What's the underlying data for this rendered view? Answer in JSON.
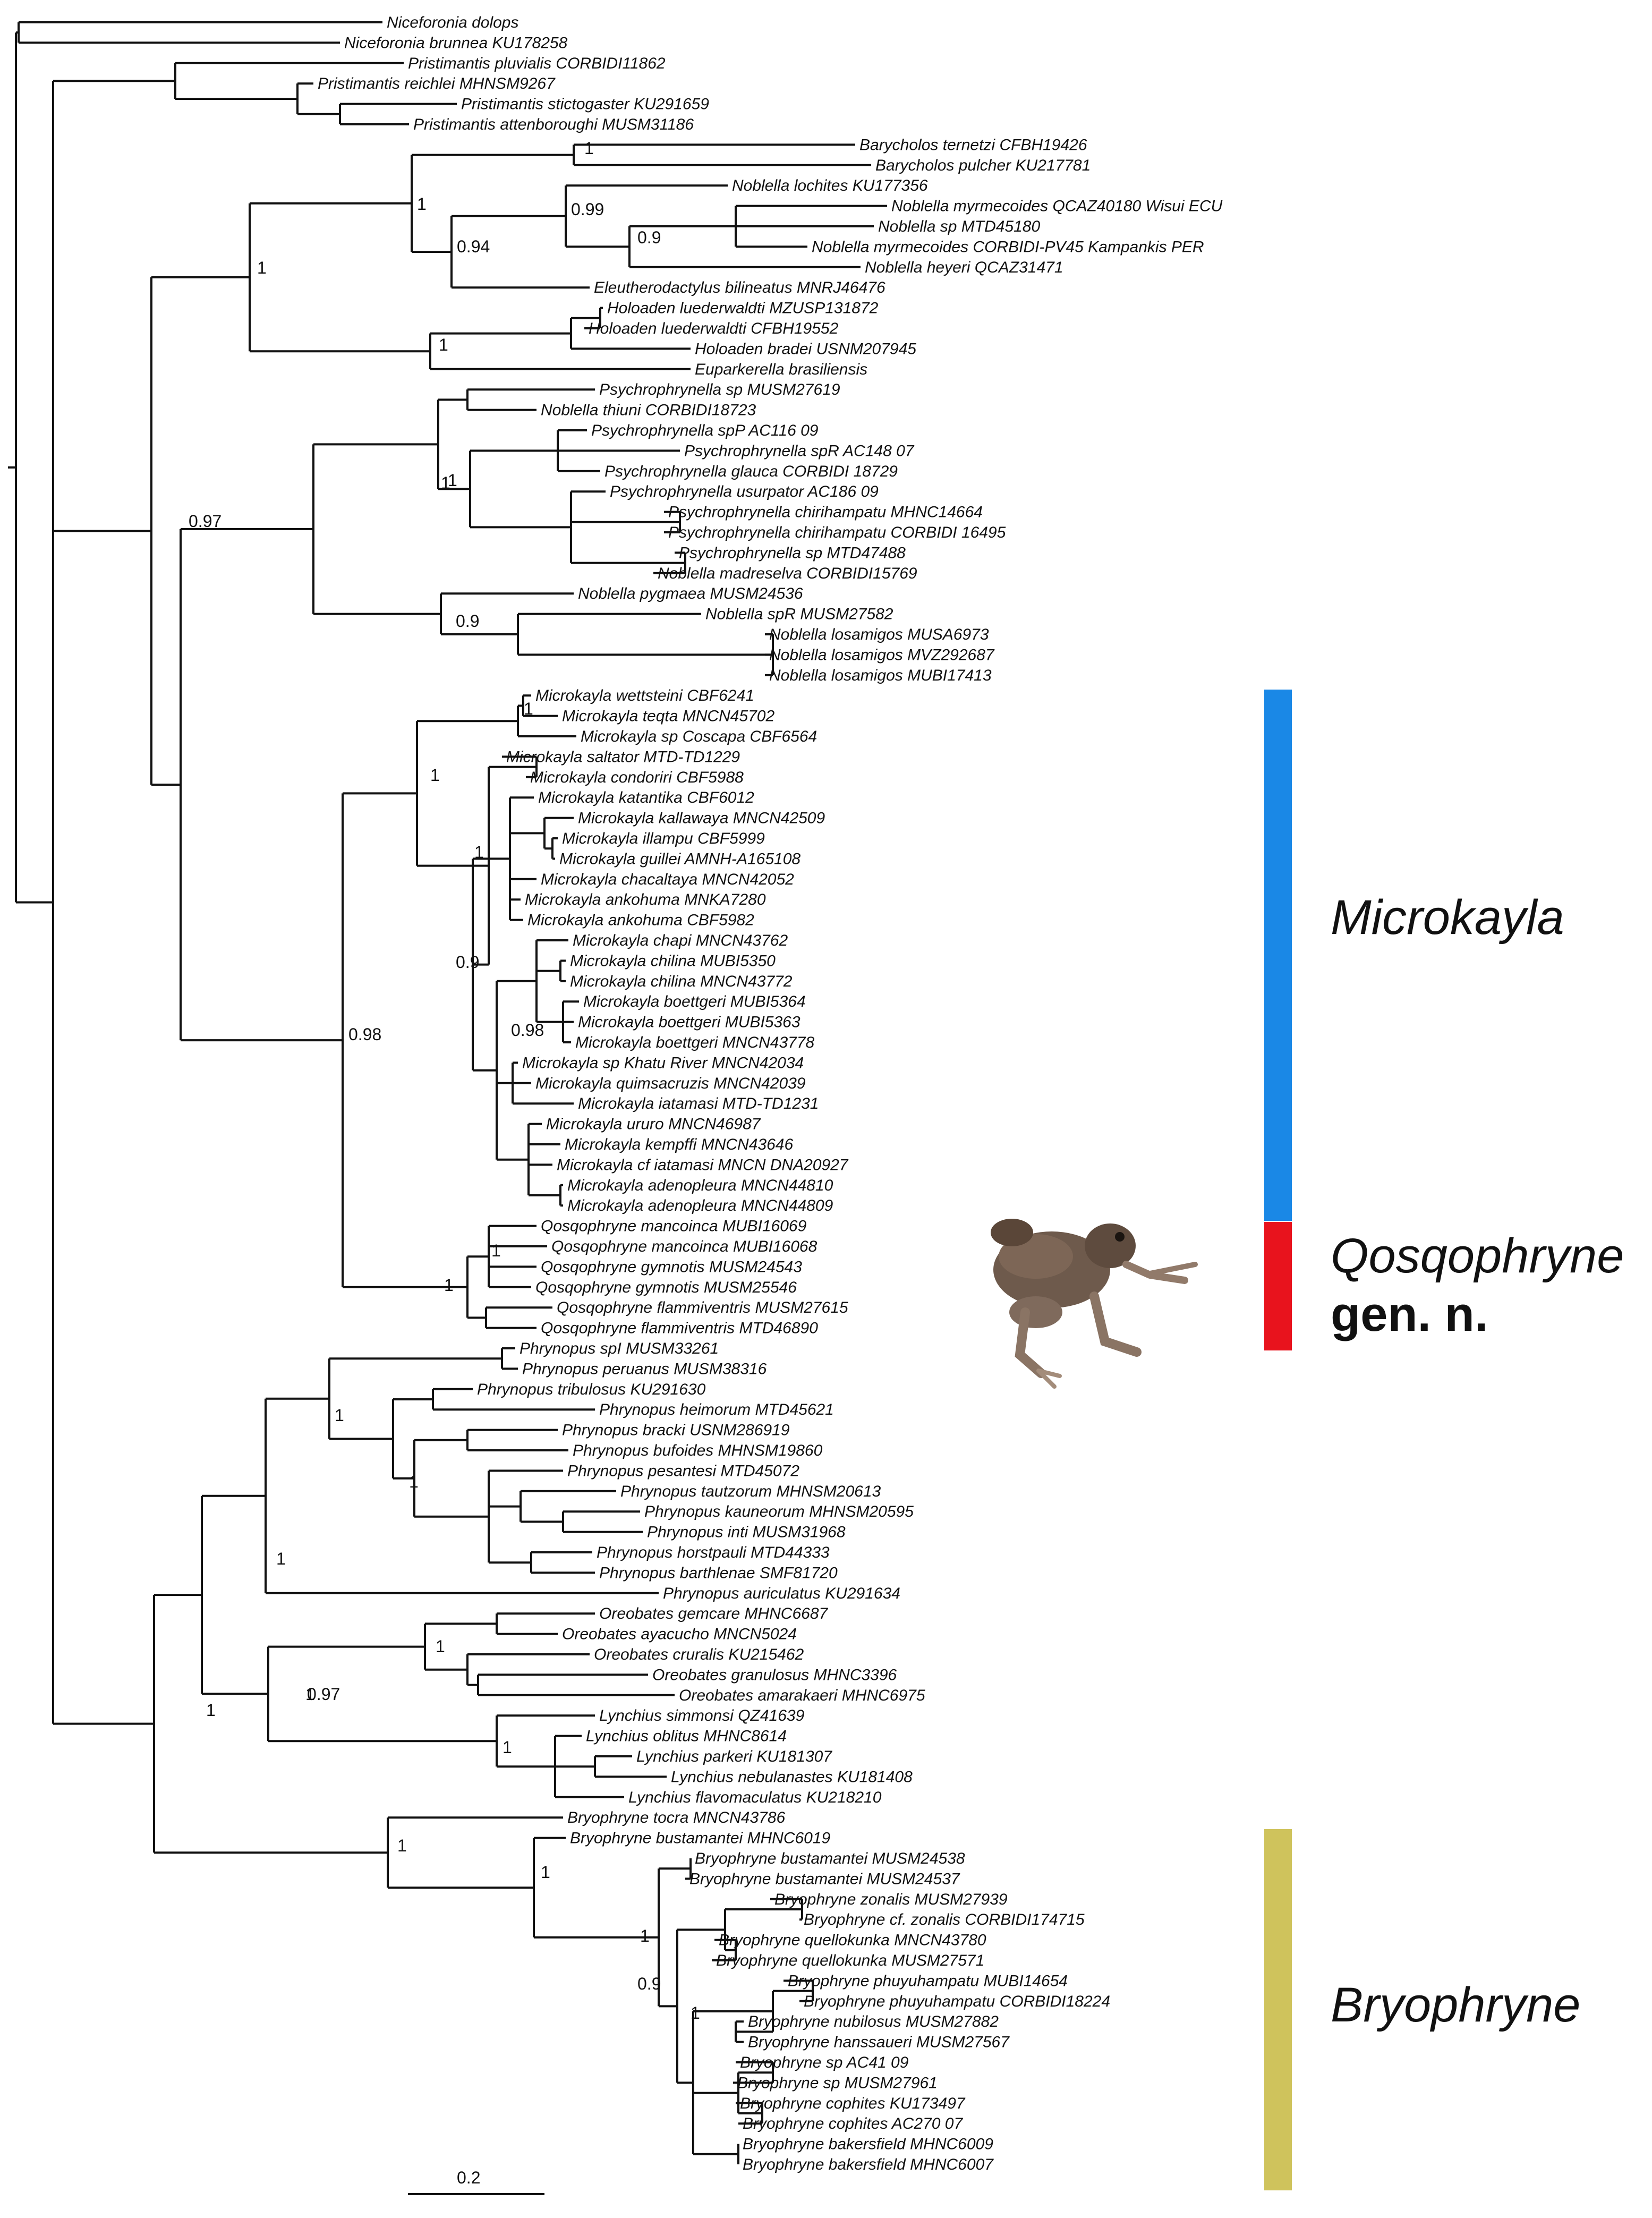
{
  "tips": [
    "Niceforonia dolops",
    "Niceforonia brunnea KU178258",
    "Pristimantis pluvialis CORBIDI11862",
    "Pristimantis reichlei MHNSM9267",
    "Pristimantis stictogaster KU291659",
    "Pristimantis attenboroughi MUSM31186",
    "Barycholos ternetzi CFBH19426",
    "Barycholos pulcher KU217781",
    "Noblella lochites KU177356",
    "Noblella myrmecoides QCAZ40180 Wisui ECU",
    "Noblella sp MTD45180",
    "Noblella myrmecoides CORBIDI-PV45 Kampankis PER",
    "Noblella heyeri QCAZ31471",
    "Eleutherodactylus bilineatus MNRJ46476",
    "Holoaden luederwaldti MZUSP131872",
    "Holoaden luederwaldti CFBH19552",
    "Holoaden bradei USNM207945",
    "Euparkerella brasiliensis",
    "Psychrophrynella sp MUSM27619",
    "Noblella thiuni CORBIDI18723",
    "Psychrophrynella spP AC116 09",
    "Psychrophrynella spR AC148 07",
    "Psychrophrynella glauca CORBIDI 18729",
    "Psychrophrynella usurpator AC186 09",
    "Psychrophrynella chirihampatu MHNC14664",
    "Psychrophrynella chirihampatu CORBIDI 16495",
    "Psychrophrynella sp MTD47488",
    "Noblella madreselva CORBIDI15769",
    "Noblella pygmaea MUSM24536",
    "Noblella spR MUSM27582",
    "Noblella losamigos MUSA6973",
    "Noblella losamigos MVZ292687",
    "Noblella losamigos MUBI17413",
    "Microkayla wettsteini CBF6241",
    "Microkayla teqta MNCN45702",
    "Microkayla sp Coscapa CBF6564",
    "Microkayla saltator MTD-TD1229",
    "Microkayla condoriri CBF5988",
    "Microkayla katantika CBF6012",
    "Microkayla kallawaya MNCN42509",
    "Microkayla illampu CBF5999",
    "Microkayla guillei AMNH-A165108",
    "Microkayla chacaltaya MNCN42052",
    "Microkayla ankohuma MNKA7280",
    "Microkayla ankohuma CBF5982",
    "Microkayla chapi MNCN43762",
    "Microkayla chilina MUBI5350",
    "Microkayla chilina MNCN43772",
    "Microkayla boettgeri MUBI5364",
    "Microkayla boettgeri MUBI5363",
    "Microkayla boettgeri MNCN43778",
    "Microkayla sp Khatu River MNCN42034",
    "Microkayla quimsacruzis MNCN42039",
    "Microkayla iatamasi MTD-TD1231",
    "Microkayla ururo MNCN46987",
    "Microkayla kempffi MNCN43646",
    "Microkayla cf iatamasi MNCN DNA20927",
    "Microkayla adenopleura MNCN44810",
    "Microkayla adenopleura MNCN44809",
    "Qosqophryne mancoinca MUBI16069",
    "Qosqophryne mancoinca MUBI16068",
    "Qosqophryne gymnotis MUSM24543",
    "Qosqophryne gymnotis MUSM25546",
    "Qosqophryne flammiventris MUSM27615",
    "Qosqophryne flammiventris MTD46890",
    "Phrynopus spI MUSM33261",
    "Phrynopus peruanus MUSM38316",
    "Phrynopus tribulosus KU291630",
    "Phrynopus heimorum MTD45621",
    "Phrynopus bracki USNM286919",
    "Phrynopus bufoides MHNSM19860",
    "Phrynopus pesantesi MTD45072",
    "Phrynopus tautzorum MHNSM20613",
    "Phrynopus kauneorum MHNSM20595",
    "Phrynopus inti MUSM31968",
    "Phrynopus horstpauli MTD44333",
    "Phrynopus barthlenae SMF81720",
    "Phrynopus auriculatus KU291634",
    "Oreobates gemcare MHNC6687",
    "Oreobates ayacucho MNCN5024",
    "Oreobates cruralis KU215462",
    "Oreobates granulosus MHNC3396",
    "Oreobates amarakaeri MHNC6975",
    "Lynchius simmonsi QZ41639",
    "Lynchius oblitus MHNC8614",
    "Lynchius parkeri KU181307",
    "Lynchius nebulanastes KU181408",
    "Lynchius flavomaculatus KU218210",
    "Bryophryne tocra MNCN43786",
    "Bryophryne bustamantei MHNC6019",
    "Bryophryne bustamantei MUSM24538",
    "Bryophryne bustamantei MUSM24537",
    "Bryophryne zonalis MUSM27939",
    "Bryophryne cf. zonalis CORBIDI174715",
    "Bryophryne quellokunka MNCN43780",
    "Bryophryne quellokunka MUSM27571",
    "Bryophryne phuyuhampatu MUBI14654",
    "Bryophryne phuyuhampatu CORBIDI18224",
    "Bryophryne nubilosus MUSM27882",
    "Bryophryne hanssaueri MUSM27567",
    "Bryophryne sp AC41 09",
    "Bryophryne sp MUSM27961",
    "Bryophryne cophites KU173497",
    "Bryophryne cophites AC270 07",
    "Bryophryne bakersfield MHNC6009",
    "Bryophryne bakersfield MHNC6007"
  ],
  "supports": [
    "1",
    "1",
    "0.99",
    "0.9",
    "0.94",
    "1",
    "1",
    "0.97",
    "1",
    "1",
    "0.9",
    "1",
    "1",
    "1",
    "0.9",
    "0.98",
    "0.98",
    "1",
    "1",
    "1",
    "1",
    "1",
    "1",
    "1",
    "0.97",
    "1",
    "1",
    "1",
    "1",
    "1",
    "0.9",
    "1"
  ],
  "clades": {
    "microkayla": {
      "name": "Microkayla",
      "color": "#1a88e6"
    },
    "qosqophryne": {
      "name": "Qosqophryne",
      "suffix": "gen. n.",
      "color": "#e8131d"
    },
    "bryophryne": {
      "name": "Bryophryne",
      "color": "#cfc35c"
    }
  },
  "scale": {
    "label": "0.2"
  },
  "photo": {
    "name": "frog-photo"
  }
}
